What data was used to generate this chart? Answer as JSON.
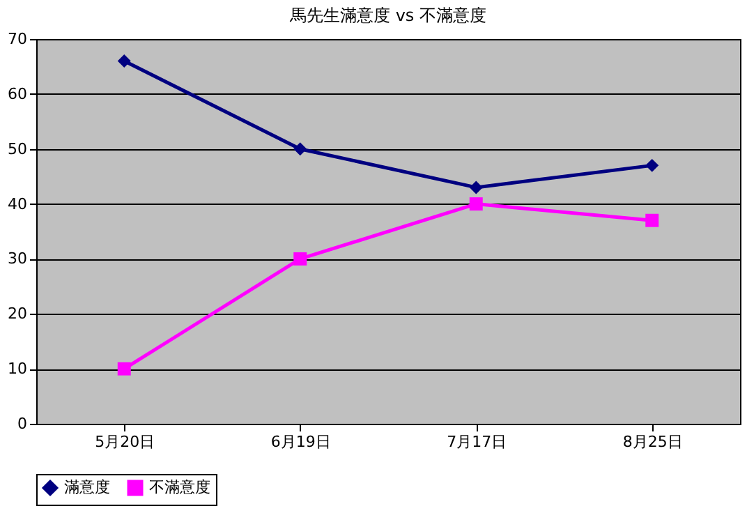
{
  "chart_data": {
    "type": "line",
    "title": "馬先生滿意度 vs 不滿意度",
    "categories": [
      "5月20日",
      "6月19日",
      "7月17日",
      "8月25日"
    ],
    "series": [
      {
        "name": "滿意度",
        "color": "#000080",
        "values": [
          66,
          50,
          43,
          47
        ],
        "marker": "diamond"
      },
      {
        "name": "不滿意度",
        "color": "#ff00ff",
        "values": [
          10,
          30,
          40,
          37
        ],
        "marker": "square"
      }
    ],
    "ylim": [
      0,
      70
    ],
    "yticks": [
      0,
      10,
      20,
      30,
      40,
      50,
      60,
      70
    ],
    "grid": "y",
    "legend": "bottom",
    "line_style": "solid"
  }
}
